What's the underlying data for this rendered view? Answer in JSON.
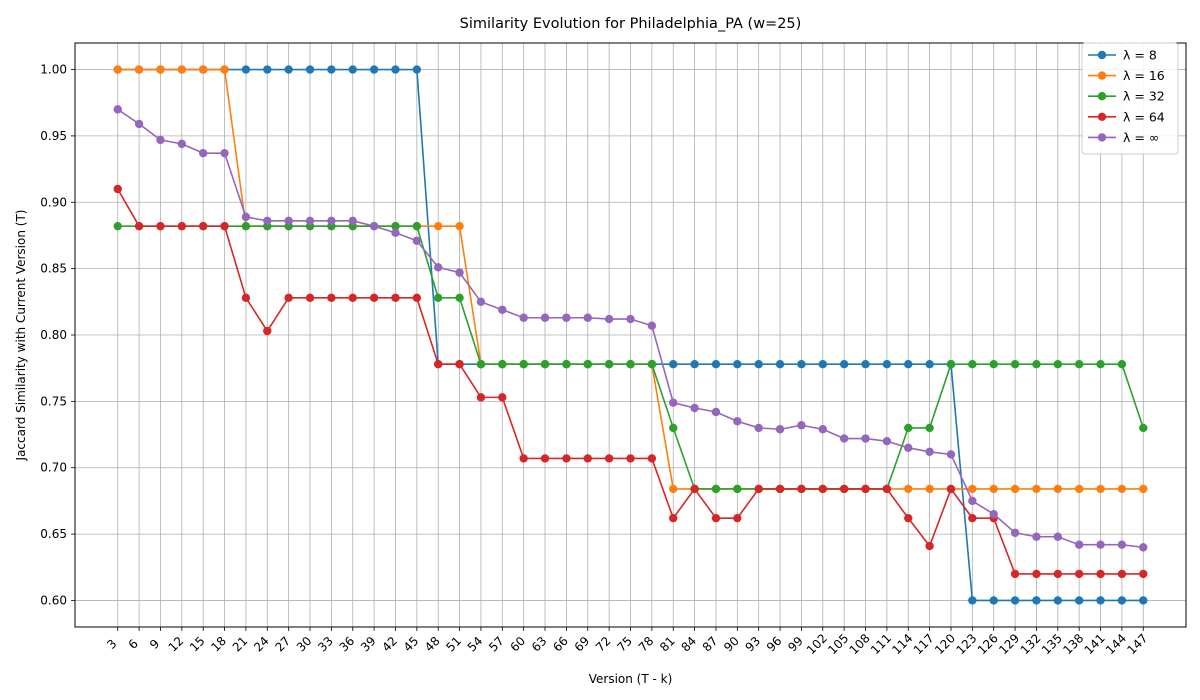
{
  "chart_data": {
    "type": "line",
    "title": "Similarity Evolution for Philadelphia_PA (w=25)",
    "xlabel": "Version (T - k)",
    "ylabel": "Jaccard Similarity with Current Version (T)",
    "x": [
      3,
      6,
      9,
      12,
      15,
      18,
      21,
      24,
      27,
      30,
      33,
      36,
      39,
      42,
      45,
      48,
      51,
      54,
      57,
      60,
      63,
      66,
      69,
      72,
      75,
      78,
      81,
      84,
      87,
      90,
      93,
      96,
      99,
      102,
      105,
      108,
      111,
      114,
      117,
      120,
      123,
      126,
      129,
      132,
      135,
      138,
      141,
      144,
      147
    ],
    "xlim": [
      -3,
      153
    ],
    "ylim": [
      0.58,
      1.02
    ],
    "yticks": [
      0.6,
      0.65,
      0.7,
      0.75,
      0.8,
      0.85,
      0.9,
      0.95,
      1.0
    ],
    "ytick_labels": [
      "0.60",
      "0.65",
      "0.70",
      "0.75",
      "0.80",
      "0.85",
      "0.90",
      "0.95",
      "1.00"
    ],
    "grid": true,
    "legend_position": "top-right",
    "series": [
      {
        "name": "λ = 8",
        "color": "#1f77b4",
        "values": [
          1.0,
          1.0,
          1.0,
          1.0,
          1.0,
          1.0,
          1.0,
          1.0,
          1.0,
          1.0,
          1.0,
          1.0,
          1.0,
          1.0,
          1.0,
          0.778,
          0.778,
          0.778,
          0.778,
          0.778,
          0.778,
          0.778,
          0.778,
          0.778,
          0.778,
          0.778,
          0.778,
          0.778,
          0.778,
          0.778,
          0.778,
          0.778,
          0.778,
          0.778,
          0.778,
          0.778,
          0.778,
          0.778,
          0.778,
          0.778,
          0.6,
          0.6,
          0.6,
          0.6,
          0.6,
          0.6,
          0.6,
          0.6,
          0.6
        ]
      },
      {
        "name": "λ = 16",
        "color": "#ff7f0e",
        "values": [
          1.0,
          1.0,
          1.0,
          1.0,
          1.0,
          1.0,
          0.882,
          0.882,
          0.882,
          0.882,
          0.882,
          0.882,
          0.882,
          0.882,
          0.882,
          0.882,
          0.882,
          0.778,
          0.778,
          0.778,
          0.778,
          0.778,
          0.778,
          0.778,
          0.778,
          0.778,
          0.684,
          0.684,
          0.684,
          0.684,
          0.684,
          0.684,
          0.684,
          0.684,
          0.684,
          0.684,
          0.684,
          0.684,
          0.684,
          0.684,
          0.684,
          0.684,
          0.684,
          0.684,
          0.684,
          0.684,
          0.684,
          0.684,
          0.684
        ]
      },
      {
        "name": "λ = 32",
        "color": "#2ca02c",
        "values": [
          0.882,
          0.882,
          0.882,
          0.882,
          0.882,
          0.882,
          0.882,
          0.882,
          0.882,
          0.882,
          0.882,
          0.882,
          0.882,
          0.882,
          0.882,
          0.828,
          0.828,
          0.778,
          0.778,
          0.778,
          0.778,
          0.778,
          0.778,
          0.778,
          0.778,
          0.778,
          0.73,
          0.684,
          0.684,
          0.684,
          0.684,
          0.684,
          0.684,
          0.684,
          0.684,
          0.684,
          0.684,
          0.73,
          0.73,
          0.778,
          0.778,
          0.778,
          0.778,
          0.778,
          0.778,
          0.778,
          0.778,
          0.778,
          0.73
        ]
      },
      {
        "name": "λ = 64",
        "color": "#d62728",
        "values": [
          0.91,
          0.882,
          0.882,
          0.882,
          0.882,
          0.882,
          0.828,
          0.803,
          0.828,
          0.828,
          0.828,
          0.828,
          0.828,
          0.828,
          0.828,
          0.778,
          0.778,
          0.753,
          0.753,
          0.707,
          0.707,
          0.707,
          0.707,
          0.707,
          0.707,
          0.707,
          0.662,
          0.684,
          0.662,
          0.662,
          0.684,
          0.684,
          0.684,
          0.684,
          0.684,
          0.684,
          0.684,
          0.662,
          0.641,
          0.684,
          0.662,
          0.662,
          0.62,
          0.62,
          0.62,
          0.62,
          0.62,
          0.62,
          0.62
        ]
      },
      {
        "name": "λ = ∞",
        "color": "#9467bd",
        "values": [
          0.97,
          0.959,
          0.947,
          0.944,
          0.937,
          0.937,
          0.889,
          0.886,
          0.886,
          0.886,
          0.886,
          0.886,
          0.882,
          0.877,
          0.871,
          0.851,
          0.847,
          0.825,
          0.819,
          0.813,
          0.813,
          0.813,
          0.813,
          0.812,
          0.812,
          0.807,
          0.749,
          0.745,
          0.742,
          0.735,
          0.73,
          0.729,
          0.732,
          0.729,
          0.722,
          0.722,
          0.72,
          0.715,
          0.712,
          0.71,
          0.675,
          0.665,
          0.651,
          0.648,
          0.648,
          0.642,
          0.642,
          0.642,
          0.64
        ]
      }
    ]
  }
}
